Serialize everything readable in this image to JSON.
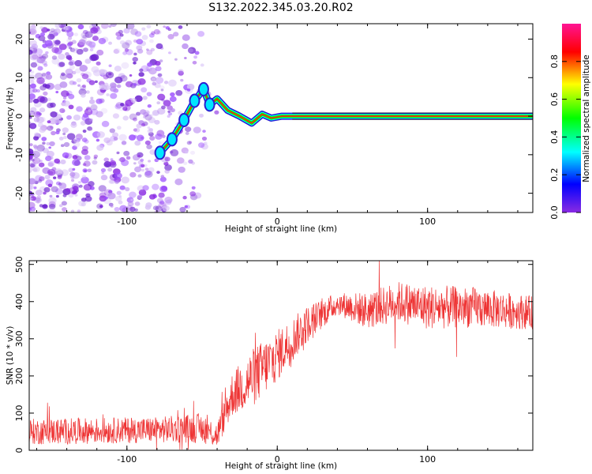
{
  "title": "S132.2022.345.03.20.R02",
  "chart_data": [
    {
      "type": "heatmap",
      "name": "spectrogram",
      "xlabel": "Height of straight line (km)",
      "ylabel": "Frequency (Hz)",
      "xlim": [
        -165,
        170
      ],
      "ylim": [
        -25,
        24
      ],
      "xticks": [
        -100,
        0,
        100
      ],
      "yticks": [
        -20,
        -10,
        0,
        10,
        20
      ],
      "colorbar": {
        "label": "Normalized spectral amplitude",
        "range": [
          0,
          1
        ],
        "ticks": [
          0.0,
          0.2,
          0.4,
          0.6,
          0.8
        ],
        "colormap": [
          "#8a2be2",
          "#0000ff",
          "#00ffff",
          "#00ff00",
          "#ffff00",
          "#ff0000",
          "#ff1493"
        ]
      },
      "ridge": [
        {
          "x": -78,
          "y": -9.5
        },
        {
          "x": -70,
          "y": -6
        },
        {
          "x": -62,
          "y": -1
        },
        {
          "x": -55,
          "y": 4
        },
        {
          "x": -49,
          "y": 7
        },
        {
          "x": -45,
          "y": 3
        },
        {
          "x": -40,
          "y": 4.5
        },
        {
          "x": -33,
          "y": 1.5
        },
        {
          "x": -25,
          "y": 0
        },
        {
          "x": -17,
          "y": -1.8
        },
        {
          "x": -10,
          "y": 0.5
        },
        {
          "x": -4,
          "y": -0.5
        },
        {
          "x": 3,
          "y": 0
        },
        {
          "x": 10,
          "y": 0
        },
        {
          "x": 170,
          "y": 0
        }
      ]
    },
    {
      "type": "line",
      "name": "snr",
      "xlabel": "Height of straight line (km)",
      "ylabel": "SNR (10 * v/v)",
      "xlim": [
        -165,
        170
      ],
      "ylim": [
        0,
        510
      ],
      "xticks": [
        -100,
        0,
        100
      ],
      "yticks": [
        0,
        100,
        200,
        300,
        400,
        500
      ],
      "color": "#ee3333",
      "envelope": [
        {
          "x": -165,
          "mean": 50,
          "spread": 35
        },
        {
          "x": -80,
          "mean": 55,
          "spread": 35
        },
        {
          "x": -50,
          "mean": 60,
          "spread": 40
        },
        {
          "x": -40,
          "mean": 40,
          "spread": 35
        },
        {
          "x": -30,
          "mean": 150,
          "spread": 60
        },
        {
          "x": -15,
          "mean": 200,
          "spread": 80
        },
        {
          "x": 0,
          "mean": 255,
          "spread": 70
        },
        {
          "x": 20,
          "mean": 340,
          "spread": 50
        },
        {
          "x": 40,
          "mean": 395,
          "spread": 30
        },
        {
          "x": 60,
          "mean": 375,
          "spread": 50
        },
        {
          "x": 80,
          "mean": 400,
          "spread": 55
        },
        {
          "x": 100,
          "mean": 385,
          "spread": 60
        },
        {
          "x": 130,
          "mean": 385,
          "spread": 55
        },
        {
          "x": 170,
          "mean": 370,
          "spread": 45
        }
      ]
    }
  ]
}
